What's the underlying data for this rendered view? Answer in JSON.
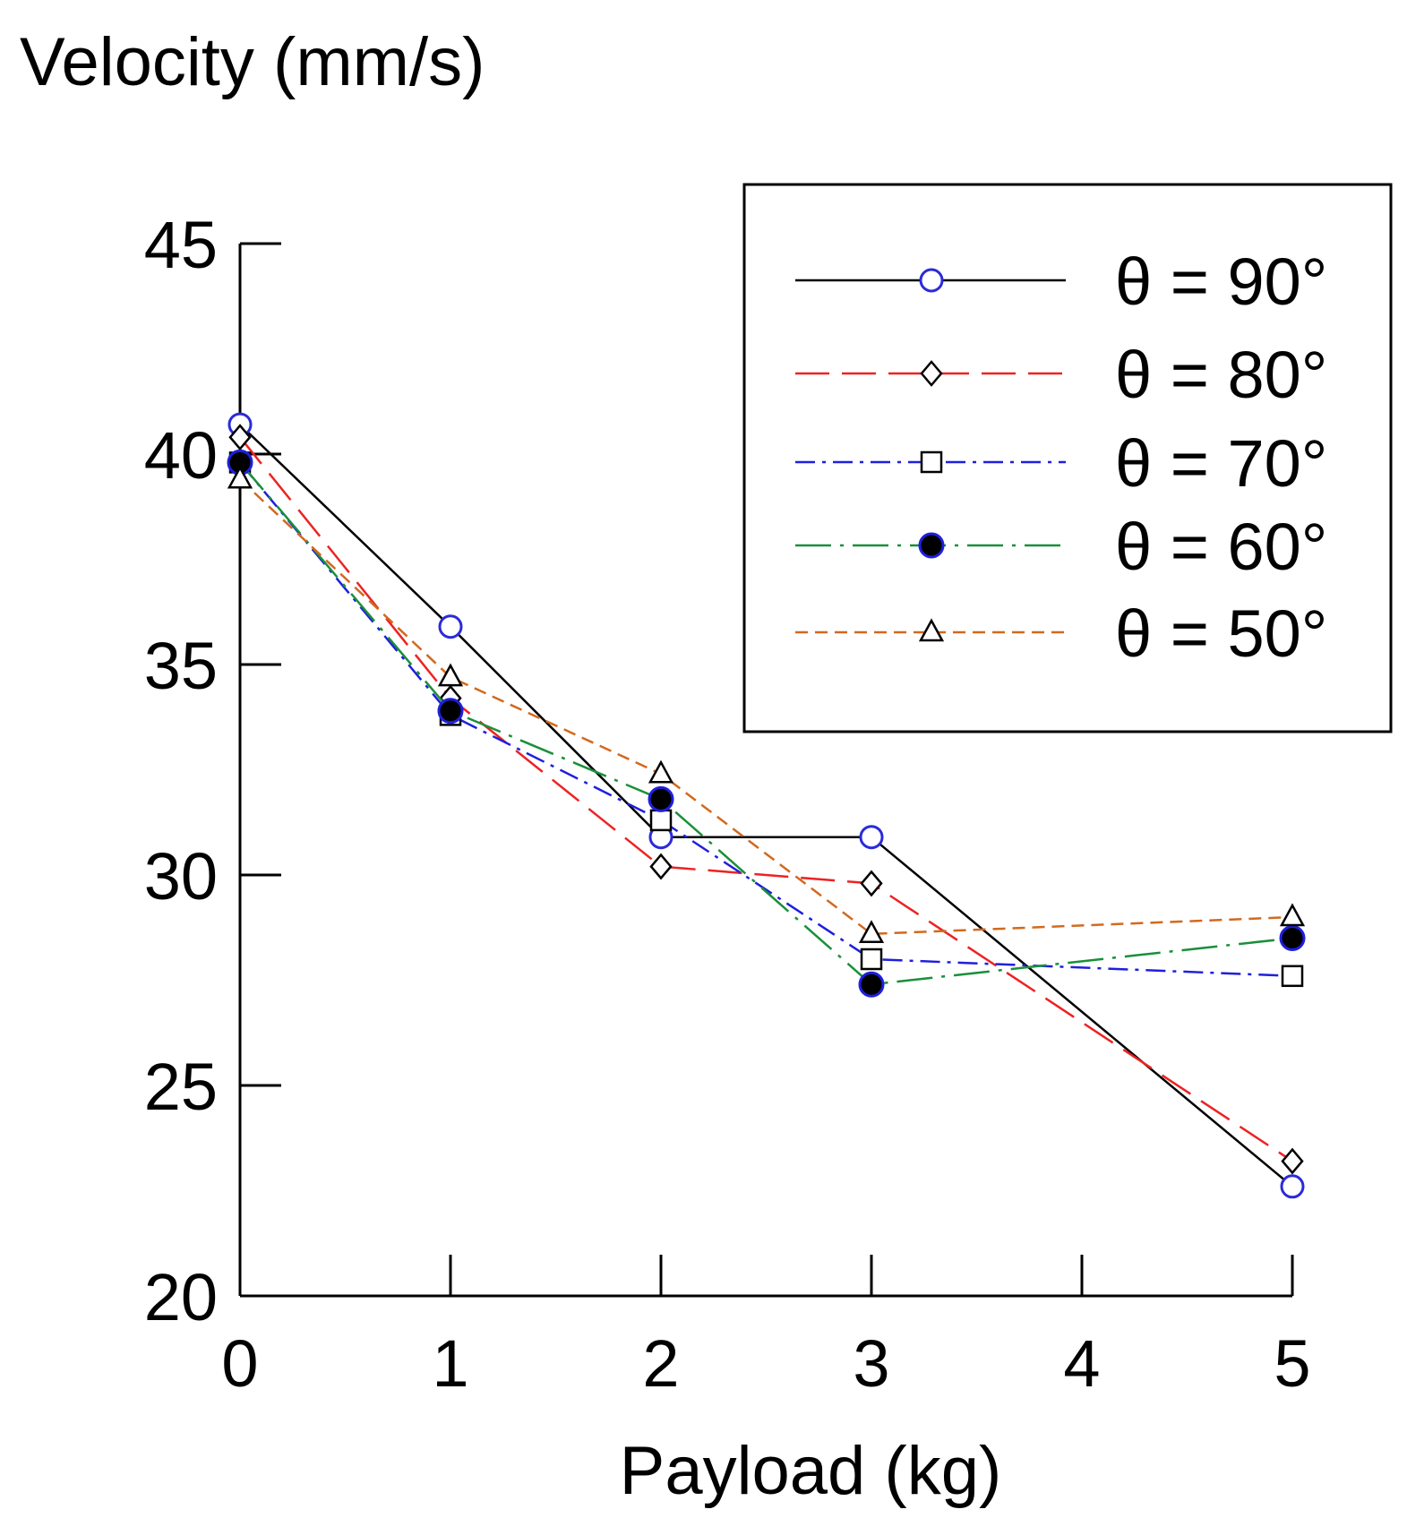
{
  "chart_data": {
    "type": "line",
    "title": "",
    "ylabel": "Velocity (mm/s)",
    "xlabel": "Payload (kg)",
    "xlim": [
      0,
      5
    ],
    "ylim": [
      20,
      45
    ],
    "xticks": [
      "0",
      "1",
      "2",
      "3",
      "4",
      "5"
    ],
    "yticks": [
      "20",
      "25",
      "30",
      "35",
      "40",
      "45"
    ],
    "x": [
      0,
      1,
      2,
      3,
      5
    ],
    "legend_position": "top-right",
    "grid": false,
    "series": [
      {
        "name": "θ = 90°",
        "values": [
          40.7,
          35.9,
          30.9,
          30.9,
          22.6
        ],
        "color": "#000000",
        "dash": "solid",
        "marker": "circle-open",
        "marker_color": "#2b2bd9"
      },
      {
        "name": "θ = 80°",
        "values": [
          40.4,
          34.2,
          30.2,
          29.8,
          23.2
        ],
        "color": "#ee2222",
        "dash": "dash",
        "marker": "diamond-open",
        "marker_color": "#000000"
      },
      {
        "name": "θ = 70°",
        "values": [
          39.8,
          33.8,
          31.3,
          28.0,
          27.6
        ],
        "color": "#1f1fdd",
        "dash": "dashdot",
        "marker": "square-open",
        "marker_color": "#000000"
      },
      {
        "name": "θ = 60°",
        "values": [
          39.8,
          33.9,
          31.8,
          27.4,
          28.5
        ],
        "color": "#1a8f3a",
        "dash": "longdashdot",
        "marker": "circle-filled",
        "marker_color": "#000000"
      },
      {
        "name": "θ = 50°",
        "values": [
          39.4,
          34.7,
          32.4,
          28.6,
          29.0
        ],
        "color": "#d2691e",
        "dash": "shortdash",
        "marker": "triangle-open",
        "marker_color": "#000000"
      }
    ]
  }
}
